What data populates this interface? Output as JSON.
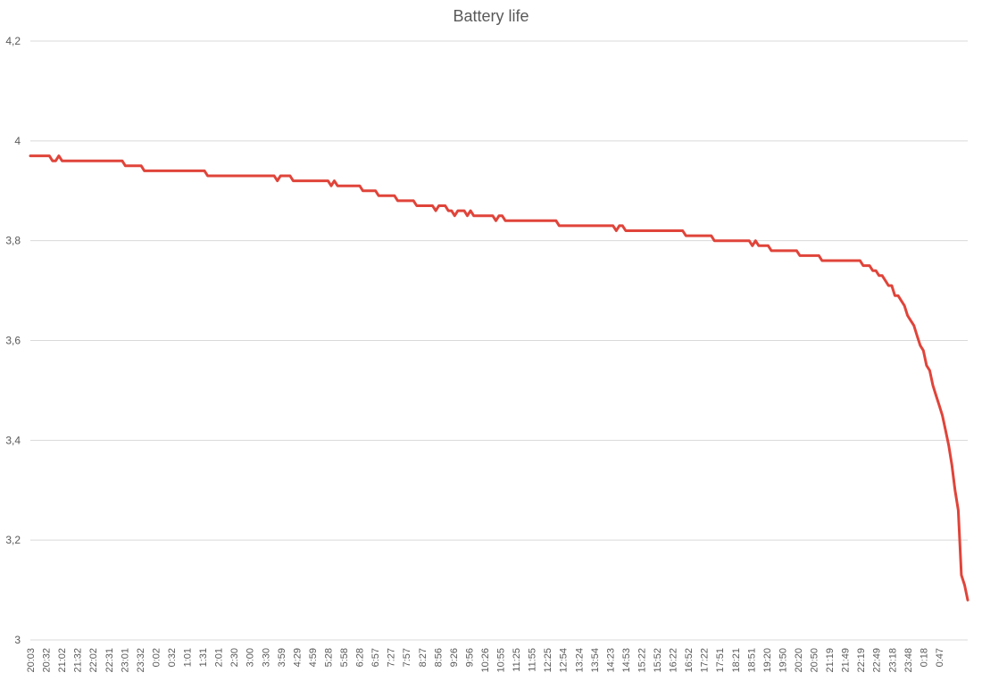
{
  "chart_data": {
    "type": "line",
    "title": "Battery life",
    "xlabel": "",
    "ylabel": "",
    "ylim": [
      3,
      4.2
    ],
    "y_ticks": [
      "3",
      "3,2",
      "3,4",
      "3,6",
      "3,8",
      "4",
      "4,2"
    ],
    "y_tick_values": [
      3,
      3.2,
      3.4,
      3.6,
      3.8,
      4,
      4.2
    ],
    "grid": true,
    "legend": "none",
    "x_tick_labels": [
      "20:03",
      "20:32",
      "21:02",
      "21:32",
      "22:02",
      "22:31",
      "23:01",
      "23:32",
      "0:02",
      "0:32",
      "1:01",
      "1:31",
      "2:01",
      "2:30",
      "3:00",
      "3:30",
      "3:59",
      "4:29",
      "4:59",
      "5:28",
      "5:58",
      "6:28",
      "6:57",
      "7:27",
      "7:57",
      "8:27",
      "8:56",
      "9:26",
      "9:56",
      "10:26",
      "10:55",
      "11:25",
      "11:55",
      "12:25",
      "12:54",
      "13:24",
      "13:54",
      "14:23",
      "14:53",
      "15:22",
      "15:52",
      "16:22",
      "16:52",
      "17:22",
      "17:51",
      "18:21",
      "18:51",
      "19:20",
      "19:50",
      "20:20",
      "20:50",
      "21:19",
      "21:49",
      "22:19",
      "22:49",
      "23:18",
      "23:48",
      "0:18",
      "0:47"
    ],
    "series": [
      {
        "color": "#e0443a",
        "values": [
          3.97,
          3.97,
          3.97,
          3.97,
          3.97,
          3.97,
          3.97,
          3.96,
          3.96,
          3.97,
          3.96,
          3.96,
          3.96,
          3.96,
          3.96,
          3.96,
          3.96,
          3.96,
          3.96,
          3.96,
          3.96,
          3.96,
          3.96,
          3.96,
          3.96,
          3.96,
          3.96,
          3.96,
          3.96,
          3.96,
          3.95,
          3.95,
          3.95,
          3.95,
          3.95,
          3.95,
          3.94,
          3.94,
          3.94,
          3.94,
          3.94,
          3.94,
          3.94,
          3.94,
          3.94,
          3.94,
          3.94,
          3.94,
          3.94,
          3.94,
          3.94,
          3.94,
          3.94,
          3.94,
          3.94,
          3.94,
          3.93,
          3.93,
          3.93,
          3.93,
          3.93,
          3.93,
          3.93,
          3.93,
          3.93,
          3.93,
          3.93,
          3.93,
          3.93,
          3.93,
          3.93,
          3.93,
          3.93,
          3.93,
          3.93,
          3.93,
          3.93,
          3.93,
          3.92,
          3.93,
          3.93,
          3.93,
          3.93,
          3.92,
          3.92,
          3.92,
          3.92,
          3.92,
          3.92,
          3.92,
          3.92,
          3.92,
          3.92,
          3.92,
          3.92,
          3.91,
          3.92,
          3.91,
          3.91,
          3.91,
          3.91,
          3.91,
          3.91,
          3.91,
          3.91,
          3.9,
          3.9,
          3.9,
          3.9,
          3.9,
          3.89,
          3.89,
          3.89,
          3.89,
          3.89,
          3.89,
          3.88,
          3.88,
          3.88,
          3.88,
          3.88,
          3.88,
          3.87,
          3.87,
          3.87,
          3.87,
          3.87,
          3.87,
          3.86,
          3.87,
          3.87,
          3.87,
          3.86,
          3.86,
          3.85,
          3.86,
          3.86,
          3.86,
          3.85,
          3.86,
          3.85,
          3.85,
          3.85,
          3.85,
          3.85,
          3.85,
          3.85,
          3.84,
          3.85,
          3.85,
          3.84,
          3.84,
          3.84,
          3.84,
          3.84,
          3.84,
          3.84,
          3.84,
          3.84,
          3.84,
          3.84,
          3.84,
          3.84,
          3.84,
          3.84,
          3.84,
          3.84,
          3.83,
          3.83,
          3.83,
          3.83,
          3.83,
          3.83,
          3.83,
          3.83,
          3.83,
          3.83,
          3.83,
          3.83,
          3.83,
          3.83,
          3.83,
          3.83,
          3.83,
          3.83,
          3.82,
          3.83,
          3.83,
          3.82,
          3.82,
          3.82,
          3.82,
          3.82,
          3.82,
          3.82,
          3.82,
          3.82,
          3.82,
          3.82,
          3.82,
          3.82,
          3.82,
          3.82,
          3.82,
          3.82,
          3.82,
          3.82,
          3.81,
          3.81,
          3.81,
          3.81,
          3.81,
          3.81,
          3.81,
          3.81,
          3.81,
          3.8,
          3.8,
          3.8,
          3.8,
          3.8,
          3.8,
          3.8,
          3.8,
          3.8,
          3.8,
          3.8,
          3.8,
          3.79,
          3.8,
          3.79,
          3.79,
          3.79,
          3.79,
          3.78,
          3.78,
          3.78,
          3.78,
          3.78,
          3.78,
          3.78,
          3.78,
          3.78,
          3.77,
          3.77,
          3.77,
          3.77,
          3.77,
          3.77,
          3.77,
          3.76,
          3.76,
          3.76,
          3.76,
          3.76,
          3.76,
          3.76,
          3.76,
          3.76,
          3.76,
          3.76,
          3.76,
          3.76,
          3.75,
          3.75,
          3.75,
          3.74,
          3.74,
          3.73,
          3.73,
          3.72,
          3.71,
          3.71,
          3.69,
          3.69,
          3.68,
          3.67,
          3.65,
          3.64,
          3.63,
          3.61,
          3.59,
          3.58,
          3.55,
          3.54,
          3.51,
          3.49,
          3.47,
          3.45,
          3.42,
          3.39,
          3.35,
          3.3,
          3.26,
          3.13,
          3.11,
          3.08
        ]
      }
    ]
  }
}
